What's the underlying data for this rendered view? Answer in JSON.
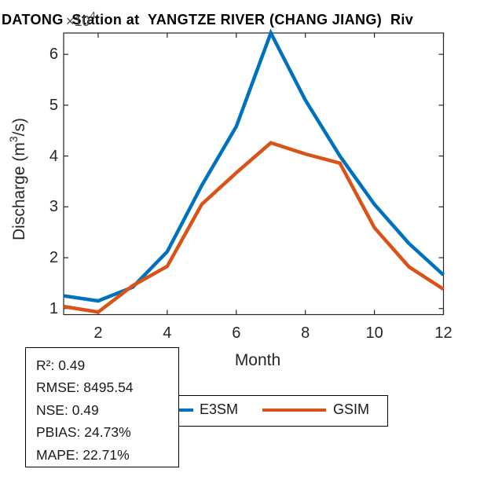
{
  "title": "DATONG  Station at  YANGTZE RIVER (CHANG JIANG)  Riv",
  "axis": {
    "y_exponent_base": "×10",
    "y_exponent_power": "4",
    "ylabel_prefix": "Discharge (m",
    "ylabel_sup": "3",
    "ylabel_suffix": "/s)",
    "xlabel": "Month"
  },
  "chart_data": {
    "type": "line",
    "title": "DATONG  Station at  YANGTZE RIVER (CHANG JIANG)  Riv",
    "xlabel": "Month",
    "ylabel": "Discharge (m³/s)",
    "y_scale_note": "y values are ×10⁴ m³/s",
    "x": [
      1,
      2,
      3,
      4,
      5,
      6,
      7,
      8,
      9,
      10,
      11,
      12
    ],
    "series": [
      {
        "name": "E3SM",
        "color": "#0072BD",
        "values": [
          1.25,
          1.15,
          1.42,
          2.12,
          3.42,
          4.58,
          6.42,
          5.1,
          4.0,
          3.05,
          2.28,
          1.66
        ]
      },
      {
        "name": "GSIM",
        "color": "#D95319",
        "values": [
          1.04,
          0.93,
          1.45,
          1.83,
          3.05,
          3.67,
          4.26,
          4.04,
          3.86,
          2.59,
          1.82,
          1.38
        ]
      }
    ],
    "xticks": [
      2,
      4,
      6,
      8,
      10,
      12
    ],
    "yticks": [
      1,
      2,
      3,
      4,
      5,
      6
    ],
    "xlim": [
      1,
      12
    ],
    "ylim": [
      0.88,
      6.42
    ],
    "grid": false,
    "legend_position": "below-plot",
    "line_width": 4.5
  },
  "legend": {
    "items": [
      {
        "label": "E3SM",
        "color": "#0072BD"
      },
      {
        "label": "GSIM",
        "color": "#D95319"
      }
    ]
  },
  "stats_box": {
    "lines": [
      "R²: 0.49",
      "RMSE: 8495.54",
      "NSE: 0.49",
      "PBIAS: 24.73%",
      "MAPE: 22.71%"
    ]
  },
  "colors": {
    "axis": "#262626",
    "e3sm": "#0072BD",
    "gsim": "#D95319"
  }
}
